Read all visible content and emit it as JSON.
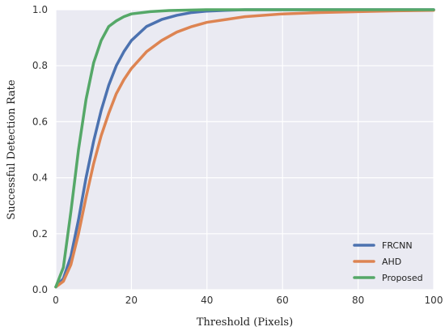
{
  "chart_data": {
    "type": "line",
    "title": "",
    "xlabel": "Threshold  (Pixels)",
    "ylabel": "Successful  Detection  Rate",
    "xlim": [
      0,
      100
    ],
    "ylim": [
      0,
      1.0
    ],
    "xticks": [
      "0",
      "20",
      "40",
      "60",
      "80",
      "100"
    ],
    "yticks": [
      "0.0",
      "0.2",
      "0.4",
      "0.6",
      "0.8",
      "1.0"
    ],
    "grid": true,
    "legend_position": "bottom-right",
    "series": [
      {
        "name": "FRCNN",
        "color": "#4c72b0",
        "x": [
          0,
          2,
          4,
          6,
          8,
          10,
          12,
          14,
          16,
          18,
          20,
          24,
          28,
          32,
          36,
          40,
          45,
          50,
          60,
          70,
          80,
          90,
          100
        ],
        "y": [
          0.01,
          0.04,
          0.12,
          0.25,
          0.4,
          0.53,
          0.64,
          0.73,
          0.8,
          0.85,
          0.89,
          0.94,
          0.965,
          0.98,
          0.99,
          0.995,
          0.998,
          1.0,
          1.0,
          1.0,
          1.0,
          1.0,
          1.0
        ]
      },
      {
        "name": "AHD",
        "color": "#dd8452",
        "x": [
          0,
          2,
          4,
          6,
          8,
          10,
          12,
          14,
          16,
          18,
          20,
          24,
          28,
          32,
          36,
          40,
          45,
          50,
          60,
          70,
          80,
          90,
          100
        ],
        "y": [
          0.01,
          0.03,
          0.09,
          0.2,
          0.33,
          0.45,
          0.55,
          0.63,
          0.7,
          0.75,
          0.79,
          0.85,
          0.89,
          0.92,
          0.94,
          0.955,
          0.965,
          0.975,
          0.985,
          0.99,
          0.993,
          0.996,
          0.998
        ]
      },
      {
        "name": "Proposed",
        "color": "#55a868",
        "x": [
          0,
          2,
          4,
          6,
          8,
          10,
          12,
          14,
          16,
          18,
          20,
          25,
          30,
          40,
          50,
          60,
          70,
          80,
          90,
          100
        ],
        "y": [
          0.01,
          0.08,
          0.28,
          0.5,
          0.68,
          0.81,
          0.89,
          0.94,
          0.96,
          0.975,
          0.985,
          0.993,
          0.997,
          1.0,
          1.0,
          1.0,
          1.0,
          1.0,
          1.0,
          1.0
        ]
      }
    ]
  }
}
